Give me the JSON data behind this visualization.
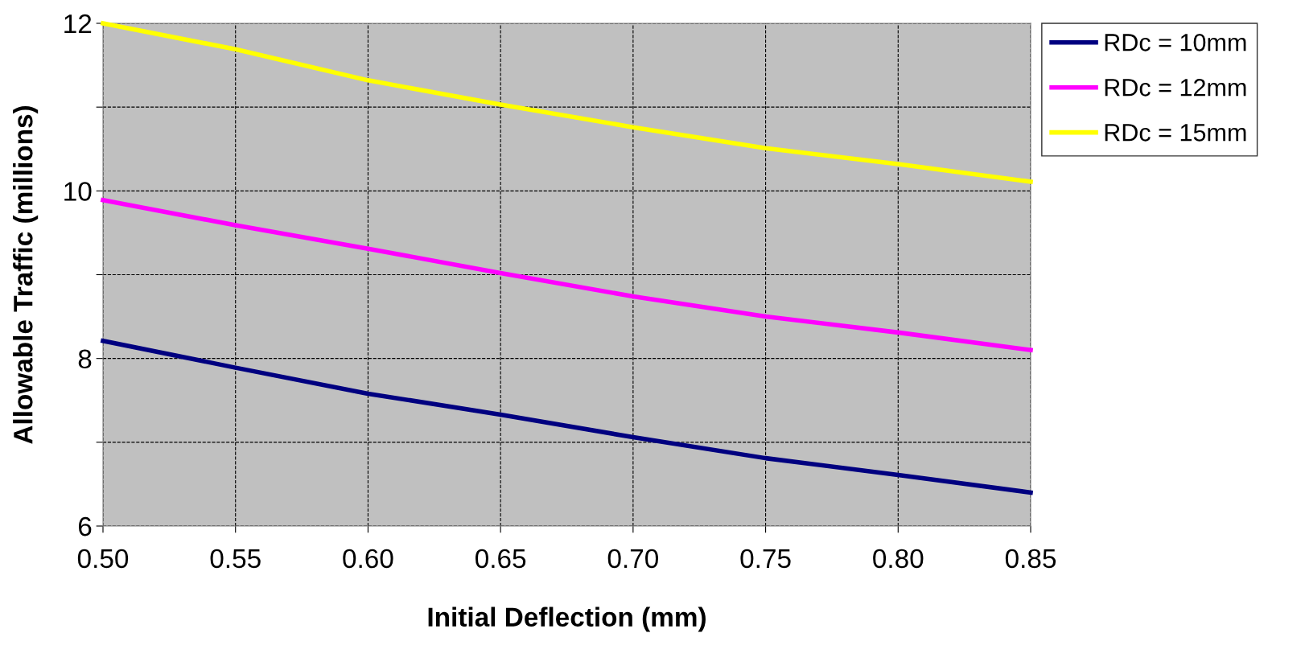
{
  "chart_data": {
    "type": "line",
    "xlabel": "Initial Deflection (mm)",
    "ylabel": "Allowable Traffic (millions)",
    "x": [
      0.5,
      0.55,
      0.6,
      0.65,
      0.7,
      0.75,
      0.8,
      0.85
    ],
    "series": [
      {
        "name": "RDc = 10mm",
        "color": "#000080",
        "values": [
          8.21,
          7.89,
          7.58,
          7.33,
          7.06,
          6.81,
          6.61,
          6.4
        ]
      },
      {
        "name": "RDc = 12mm",
        "color": "#ff00ff",
        "values": [
          9.89,
          9.59,
          9.31,
          9.02,
          8.74,
          8.5,
          8.31,
          8.1
        ]
      },
      {
        "name": "RDc = 15mm",
        "color": "#ffff00",
        "values": [
          12.0,
          11.69,
          11.32,
          11.03,
          10.76,
          10.51,
          10.32,
          10.11
        ]
      }
    ],
    "xlim": [
      0.5,
      0.85
    ],
    "xticks": [
      {
        "value": 0.5,
        "label": "0.50"
      },
      {
        "value": 0.55,
        "label": "0.55"
      },
      {
        "value": 0.6,
        "label": "0.60"
      },
      {
        "value": 0.65,
        "label": "0.65"
      },
      {
        "value": 0.7,
        "label": "0.70"
      },
      {
        "value": 0.75,
        "label": "0.75"
      },
      {
        "value": 0.8,
        "label": "0.80"
      },
      {
        "value": 0.85,
        "label": "0.85"
      }
    ],
    "ylim": [
      6,
      12
    ],
    "yticks": [
      6,
      {
        "value": 7,
        "label": null
      },
      8,
      {
        "value": 9,
        "label": null
      },
      10,
      {
        "value": 11,
        "label": null
      },
      12
    ],
    "grid": true,
    "line_style": "solid",
    "marker": "none",
    "legend": "top right"
  }
}
